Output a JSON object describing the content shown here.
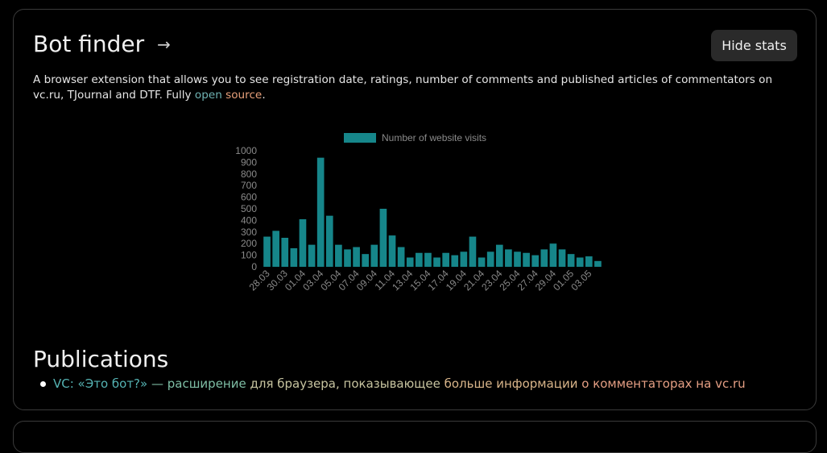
{
  "header": {
    "title": "Bot finder",
    "arrow": "→",
    "hide_stats_label": "Hide stats"
  },
  "description": {
    "text_before": "A browser extension that allows you to see registration date, ratings, number of comments and published articles of commentators on vc.ru, TJournal and DTF. Fully ",
    "link_open": "open",
    "link_source": "source",
    "text_after": "."
  },
  "colors": {
    "bar": "#16868a",
    "axis_text": "#8a8a8a",
    "background": "#000000"
  },
  "chart_data": {
    "type": "bar",
    "series": [
      {
        "name": "Number of website visits",
        "values": [
          260,
          310,
          250,
          160,
          410,
          190,
          940,
          440,
          190,
          150,
          170,
          110,
          190,
          500,
          270,
          170,
          80,
          120,
          120,
          80,
          120,
          100,
          130,
          260,
          80,
          130,
          190,
          150,
          130,
          120,
          100,
          150,
          200,
          150,
          110,
          80,
          90,
          50
        ]
      }
    ],
    "categories": [
      "28.03",
      "29.03",
      "30.03",
      "31.03",
      "01.04",
      "02.04",
      "03.04",
      "04.04",
      "05.04",
      "06.04",
      "07.04",
      "08.04",
      "09.04",
      "10.04",
      "11.04",
      "12.04",
      "13.04",
      "14.04",
      "15.04",
      "16.04",
      "17.04",
      "18.04",
      "19.04",
      "20.04",
      "21.04",
      "22.04",
      "23.04",
      "24.04",
      "25.04",
      "26.04",
      "27.04",
      "28.04",
      "29.04",
      "30.04",
      "01.05",
      "02.05",
      "03.05",
      "04.05"
    ],
    "tick_labels": [
      "28.03",
      "30.03",
      "01.04",
      "03.04",
      "05.04",
      "07.04",
      "09.04",
      "11.04",
      "13.04",
      "15.04",
      "17.04",
      "19.04",
      "21.04",
      "23.04",
      "25.04",
      "27.04",
      "29.04",
      "01.05",
      "03.05"
    ],
    "y_ticks": [
      0,
      100,
      200,
      300,
      400,
      500,
      600,
      700,
      800,
      900,
      1000
    ],
    "ylim": [
      0,
      1000
    ],
    "legend_position": "top",
    "grid": false
  },
  "publications": {
    "title": "Publications",
    "items": [
      {
        "parts": [
          "VC: «Это бот?»",
          " — расширение",
          " для браузера, показывающее",
          " больше информации",
          " о комментаторах на vc.ru"
        ]
      }
    ]
  }
}
